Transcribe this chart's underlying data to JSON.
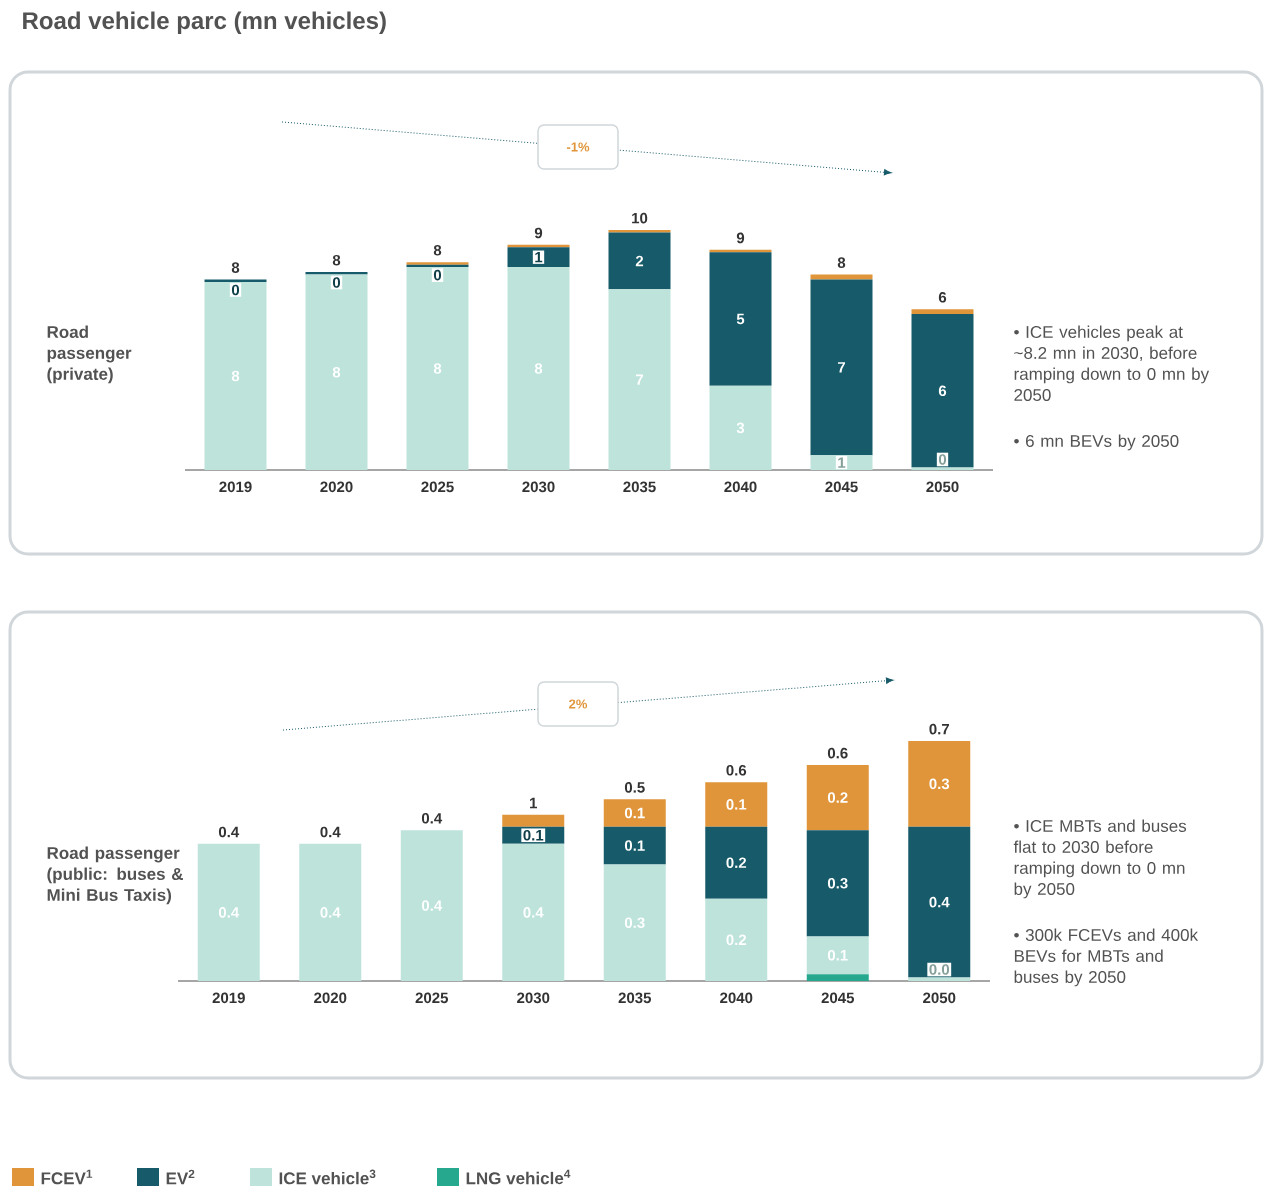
{
  "chart_data": [
    {
      "type": "bar",
      "stacked": true,
      "title": "Road vehicle parc (mn vehicles)",
      "ylabel": "Road passenger (private)",
      "categories": [
        "2019",
        "2020",
        "2025",
        "2030",
        "2035",
        "2040",
        "2045",
        "2050"
      ],
      "series": [
        {
          "color": "#bde3db",
          "values": [
            7.6,
            7.9,
            8.2,
            8.2,
            7.3,
            3.4,
            0.6,
            0.1
          ],
          "value_labels": [
            "8",
            "8",
            "8",
            "8",
            "7",
            "3",
            "1",
            "0"
          ]
        },
        {
          "color": "#175a69",
          "values": [
            0.1,
            0.1,
            0.1,
            0.8,
            2.3,
            5.4,
            7.1,
            6.2
          ],
          "value_labels": [
            "0",
            "0",
            "0",
            "1",
            "2",
            "5",
            "7",
            "6"
          ]
        },
        {
          "color": "#e0953a",
          "values": [
            0,
            0,
            0.1,
            0.1,
            0.1,
            0.1,
            0.2,
            0.2
          ]
        }
      ],
      "totals": [
        "8",
        "8",
        "8",
        "9",
        "10",
        "9",
        "8",
        "6"
      ],
      "annotations": [
        "-1%",
        "• ICE vehicles peak at ~8.2 mn in 2030, before ramping down to 0 mn by 2050",
        "• 6 mn BEVs by 2050"
      ]
    },
    {
      "type": "bar",
      "stacked": true,
      "legend": "bottom",
      "ylabel": "Road passenger (public: buses & Mini Bus Taxis)",
      "categories": [
        "2019",
        "2020",
        "2025",
        "2030",
        "2035",
        "2040",
        "2045",
        "2050"
      ],
      "series": [
        {
          "name": "LNG vehicle$^{4}$",
          "color": "#26a88f",
          "values": [
            0,
            0,
            0,
            0,
            0,
            0,
            0.02,
            0
          ]
        },
        {
          "name": "ICE vehicle$^{3}$",
          "color": "#bde3db",
          "values": [
            0.4,
            0.4,
            0.44,
            0.4,
            0.34,
            0.24,
            0.11,
            0.01
          ],
          "value_labels": [
            "0.4",
            "0.4",
            "0.4",
            "0.4",
            "0.3",
            "0.2",
            "0.1",
            "0.0"
          ]
        },
        {
          "name": "EV$^{2}$",
          "color": "#175a69",
          "values": [
            0,
            0,
            0,
            0.05,
            0.11,
            0.21,
            0.31,
            0.44
          ],
          "value_labels": [
            null,
            null,
            null,
            "0.1",
            "0.1",
            "0.2",
            "0.3",
            "0.4"
          ]
        },
        {
          "name": "FCEV$^{1}$",
          "color": "#e0953a",
          "values": [
            0,
            0,
            0,
            0.035,
            0.08,
            0.13,
            0.19,
            0.25
          ],
          "value_labels": [
            null,
            null,
            null,
            null,
            "0.1",
            "0.1",
            "0.2",
            "0.3"
          ]
        }
      ],
      "totals": [
        "0.4",
        "0.4",
        "0.4",
        "1",
        "0.5",
        "0.6",
        "0.6",
        "0.7"
      ],
      "annotations": [
        "2%",
        "• ICE MBTs and buses flat to 2030 before ramping down to 0 mn by 2050",
        "• 300k FCEVs and 400k BEVs for MBTs and buses by 2050"
      ]
    }
  ]
}
